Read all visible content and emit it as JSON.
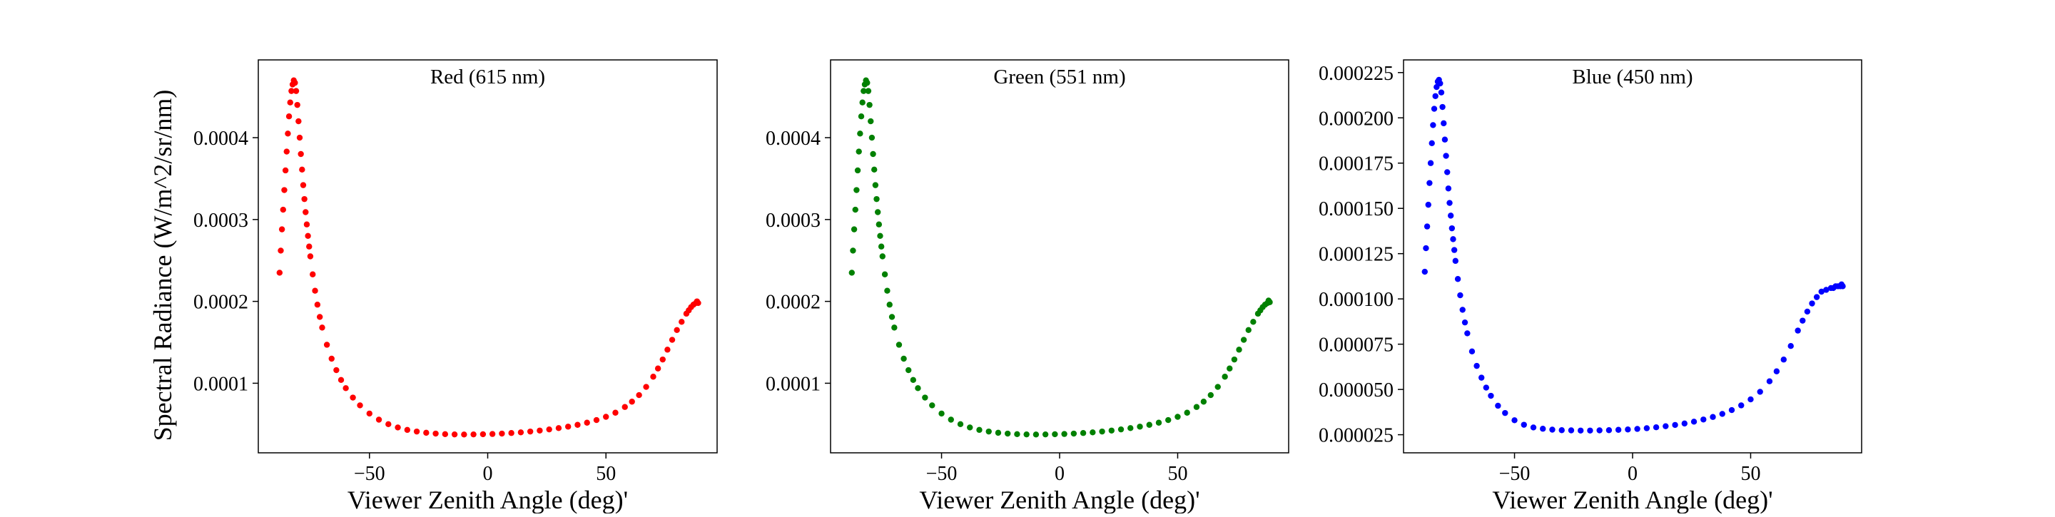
{
  "figure": {
    "ylabel": "Spectral Radiance (W/m^2/sr/nm)"
  },
  "chart_data": [
    {
      "type": "scatter",
      "title": "Red (615 nm)",
      "xlabel": "Viewer Zenith Angle (deg)'",
      "ylabel": "Spectral Radiance (W/m^2/sr/nm)",
      "color": "#ff0000",
      "xlim": [
        -97,
        97
      ],
      "ylim": [
        1.5e-05,
        0.000495
      ],
      "x_ticks": [
        -50,
        0,
        50
      ],
      "x_tick_labels": [
        "−50",
        "0",
        "50"
      ],
      "y_ticks": [
        0.0001,
        0.0002,
        0.0003,
        0.0004
      ],
      "y_tick_labels": [
        "0.0001",
        "0.0002",
        "0.0003",
        "0.0004"
      ],
      "series": [
        {
          "x": [
            -88,
            -87.5,
            -87,
            -86.5,
            -86,
            -85.5,
            -85,
            -84.5,
            -84,
            -83.5,
            -83,
            -82.5,
            -82,
            -81.5,
            -81,
            -80.5,
            -80,
            -79.5,
            -79,
            -78.5,
            -78,
            -77.5,
            -77,
            -76.5,
            -76,
            -75.5,
            -75,
            -74,
            -73,
            -72,
            -71,
            -70,
            -68,
            -66,
            -64,
            -62,
            -60,
            -57,
            -54,
            -50,
            -46,
            -42,
            -38,
            -34,
            -30,
            -26,
            -22,
            -18,
            -14,
            -10,
            -6,
            -2,
            2,
            6,
            10,
            14,
            18,
            22,
            26,
            30,
            34,
            38,
            42,
            46,
            50,
            54,
            58,
            61,
            64,
            67,
            70,
            72,
            74,
            76,
            78,
            80,
            82,
            84,
            85,
            86,
            87,
            88,
            88.5,
            89
          ],
          "y": [
            0.000235,
            0.000262,
            0.000288,
            0.000312,
            0.000336,
            0.00036,
            0.000383,
            0.000405,
            0.000426,
            0.000443,
            0.000457,
            0.000465,
            0.00047,
            0.000467,
            0.000457,
            0.00044,
            0.00042,
            0.0004,
            0.00038,
            0.000361,
            0.000342,
            0.000325,
            0.000309,
            0.000294,
            0.00028,
            0.000267,
            0.000255,
            0.000233,
            0.000213,
            0.000196,
            0.000181,
            0.000168,
            0.000147,
            0.00013,
            0.000116,
            0.000104,
            9.4e-05,
            8.25e-05,
            7.3e-05,
            6.3e-05,
            5.55e-05,
            5e-05,
            4.6e-05,
            4.3e-05,
            4.1e-05,
            3.95e-05,
            3.85e-05,
            3.78e-05,
            3.75e-05,
            3.74e-05,
            3.75e-05,
            3.77e-05,
            3.8e-05,
            3.85e-05,
            3.92e-05,
            4e-05,
            4.1e-05,
            4.22e-05,
            4.36e-05,
            4.52e-05,
            4.7e-05,
            4.92e-05,
            5.18e-05,
            5.5e-05,
            5.9e-05,
            6.4e-05,
            7.1e-05,
            7.75e-05,
            8.55e-05,
            9.55e-05,
            0.000108,
            0.000118,
            0.000129,
            0.000141,
            0.000153,
            0.000165,
            0.000175,
            0.000185,
            0.000189,
            0.000193,
            0.000196,
            0.000198,
            0.0002,
            0.000198
          ]
        }
      ]
    },
    {
      "type": "scatter",
      "title": "Green (551 nm)",
      "xlabel": "Viewer Zenith Angle (deg)'",
      "ylabel": "",
      "color": "#008000",
      "xlim": [
        -97,
        97
      ],
      "ylim": [
        1.5e-05,
        0.000495
      ],
      "x_ticks": [
        -50,
        0,
        50
      ],
      "x_tick_labels": [
        "−50",
        "0",
        "50"
      ],
      "y_ticks": [
        0.0001,
        0.0002,
        0.0003,
        0.0004
      ],
      "y_tick_labels": [
        "0.0001",
        "0.0002",
        "0.0003",
        "0.0004"
      ],
      "series": [
        {
          "x": [
            -88,
            -87.5,
            -87,
            -86.5,
            -86,
            -85.5,
            -85,
            -84.5,
            -84,
            -83.5,
            -83,
            -82.5,
            -82,
            -81.5,
            -81,
            -80.5,
            -80,
            -79.5,
            -79,
            -78.5,
            -78,
            -77.5,
            -77,
            -76.5,
            -76,
            -75.5,
            -75,
            -74,
            -73,
            -72,
            -71,
            -70,
            -68,
            -66,
            -64,
            -62,
            -60,
            -57,
            -54,
            -50,
            -46,
            -42,
            -38,
            -34,
            -30,
            -26,
            -22,
            -18,
            -14,
            -10,
            -6,
            -2,
            2,
            6,
            10,
            14,
            18,
            22,
            26,
            30,
            34,
            38,
            42,
            46,
            50,
            54,
            58,
            61,
            64,
            67,
            70,
            72,
            74,
            76,
            78,
            80,
            82,
            84,
            85,
            86,
            87,
            88,
            88.5,
            89
          ],
          "y": [
            0.000235,
            0.000262,
            0.000288,
            0.000312,
            0.000336,
            0.00036,
            0.000383,
            0.000405,
            0.000426,
            0.000443,
            0.000457,
            0.000465,
            0.00047,
            0.000467,
            0.000457,
            0.00044,
            0.00042,
            0.0004,
            0.00038,
            0.000361,
            0.000342,
            0.000325,
            0.000309,
            0.000294,
            0.00028,
            0.000267,
            0.000255,
            0.000233,
            0.000213,
            0.000196,
            0.000181,
            0.000168,
            0.000147,
            0.00013,
            0.000116,
            0.000104,
            9.4e-05,
            8.25e-05,
            7.3e-05,
            6.3e-05,
            5.55e-05,
            5e-05,
            4.6e-05,
            4.3e-05,
            4.1e-05,
            3.95e-05,
            3.85e-05,
            3.78e-05,
            3.75e-05,
            3.74e-05,
            3.75e-05,
            3.77e-05,
            3.8e-05,
            3.85e-05,
            3.92e-05,
            4e-05,
            4.1e-05,
            4.22e-05,
            4.36e-05,
            4.52e-05,
            4.7e-05,
            4.92e-05,
            5.18e-05,
            5.5e-05,
            5.9e-05,
            6.4e-05,
            7.1e-05,
            7.75e-05,
            8.55e-05,
            9.55e-05,
            0.000108,
            0.000118,
            0.000129,
            0.000141,
            0.000153,
            0.000165,
            0.000175,
            0.000185,
            0.000189,
            0.000193,
            0.000196,
            0.000198,
            0.000201,
            0.000199
          ]
        }
      ]
    },
    {
      "type": "scatter",
      "title": "Blue (450 nm)",
      "xlabel": "Viewer Zenith Angle (deg)'",
      "ylabel": "",
      "color": "#0000ff",
      "xlim": [
        -97,
        97
      ],
      "ylim": [
        1.5e-05,
        0.000232
      ],
      "x_ticks": [
        -50,
        0,
        50
      ],
      "x_tick_labels": [
        "−50",
        "0",
        "50"
      ],
      "y_ticks": [
        2.5e-05,
        5e-05,
        7.5e-05,
        0.0001,
        0.000125,
        0.00015,
        0.000175,
        0.0002,
        0.000225
      ],
      "y_tick_labels": [
        "0.000025",
        "0.000050",
        "0.000075",
        "0.000100",
        "0.000125",
        "0.000150",
        "0.000175",
        "0.000200",
        "0.000225"
      ],
      "series": [
        {
          "x": [
            -88,
            -87.5,
            -87,
            -86.5,
            -86,
            -85.5,
            -85,
            -84.5,
            -84,
            -83.5,
            -83,
            -82.5,
            -82,
            -81.5,
            -81,
            -80.5,
            -80,
            -79.5,
            -79,
            -78.5,
            -78,
            -77.5,
            -77,
            -76.5,
            -76,
            -75.5,
            -75,
            -74,
            -73,
            -72,
            -71,
            -70,
            -68,
            -66,
            -64,
            -62,
            -60,
            -57,
            -54,
            -50,
            -46,
            -42,
            -38,
            -34,
            -30,
            -26,
            -22,
            -18,
            -14,
            -10,
            -6,
            -2,
            2,
            6,
            10,
            14,
            18,
            22,
            26,
            30,
            34,
            38,
            42,
            46,
            50,
            54,
            58,
            61,
            64,
            67,
            70,
            72,
            74,
            76,
            78,
            80,
            82,
            84,
            85,
            86,
            87,
            88,
            88.5,
            89
          ],
          "y": [
            0.000115,
            0.000128,
            0.00014,
            0.000152,
            0.000164,
            0.000175,
            0.000186,
            0.000196,
            0.000205,
            0.000212,
            0.000217,
            0.00022,
            0.000221,
            0.000219,
            0.000214,
            0.000206,
            0.000197,
            0.000188,
            0.000179,
            0.00017,
            0.000161,
            0.000153,
            0.000146,
            0.000139,
            0.000133,
            0.000127,
            0.000121,
            0.000111,
            0.000102,
            9.4e-05,
            8.7e-05,
            8.1e-05,
            7.1e-05,
            6.3e-05,
            5.65e-05,
            5.1e-05,
            4.65e-05,
            4.1e-05,
            3.7e-05,
            3.3e-05,
            3.05e-05,
            2.9e-05,
            2.83e-05,
            2.78e-05,
            2.75e-05,
            2.74e-05,
            2.73e-05,
            2.73e-05,
            2.74e-05,
            2.75e-05,
            2.77e-05,
            2.79e-05,
            2.82e-05,
            2.86e-05,
            2.91e-05,
            2.97e-05,
            3.04e-05,
            3.12e-05,
            3.22e-05,
            3.34e-05,
            3.48e-05,
            3.65e-05,
            3.86e-05,
            4.12e-05,
            4.45e-05,
            4.87e-05,
            5.45e-05,
            6e-05,
            6.65e-05,
            7.4e-05,
            8.25e-05,
            8.8e-05,
            9.3e-05,
            9.75e-05,
            0.000101,
            0.000104,
            0.000105,
            0.000106,
            0.000106,
            0.000107,
            0.000107,
            0.000107,
            0.000108,
            0.000107
          ]
        }
      ]
    }
  ]
}
